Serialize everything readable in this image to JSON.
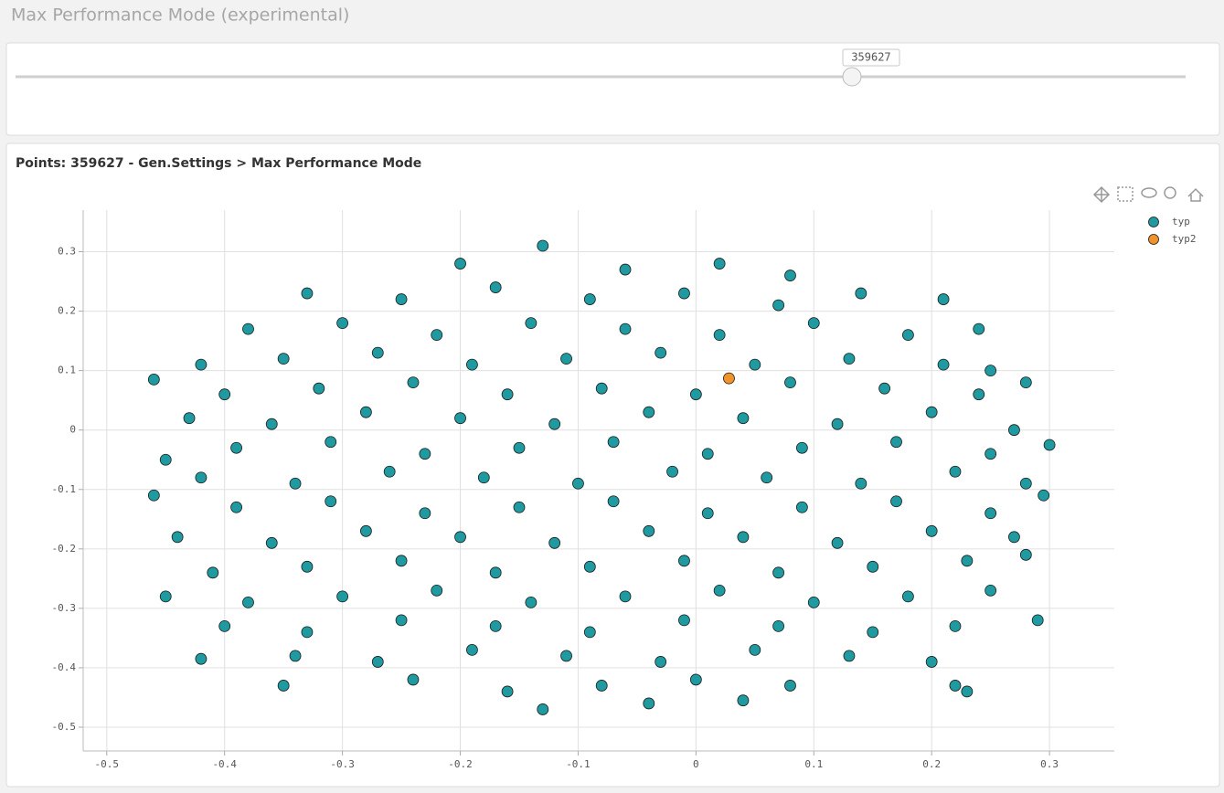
{
  "header": {
    "title": "Max Performance Mode (experimental)"
  },
  "slider": {
    "value": 359627
  },
  "chart_data": {
    "type": "scatter",
    "title": "Points: 359627 - Gen.Settings > Max Performance Mode",
    "xlim": [
      -0.52,
      0.355
    ],
    "ylim": [
      -0.54,
      0.37
    ],
    "xticks": [
      -0.5,
      -0.4,
      -0.3,
      -0.2,
      -0.1,
      0,
      0.1,
      0.2,
      0.3
    ],
    "yticks": [
      -0.5,
      -0.4,
      -0.3,
      -0.2,
      -0.1,
      0,
      0.1,
      0.2,
      0.3
    ],
    "grid": true,
    "legend": "right",
    "series": [
      {
        "name": "typ",
        "color": "#1f9aa0",
        "x": [
          -0.2,
          -0.13,
          -0.06,
          0.02,
          0.08,
          -0.33,
          -0.25,
          -0.17,
          -0.09,
          -0.01,
          0.07,
          0.14,
          0.21,
          -0.38,
          -0.3,
          -0.22,
          -0.14,
          -0.06,
          0.02,
          0.1,
          0.18,
          0.24,
          -0.42,
          -0.35,
          -0.27,
          -0.19,
          -0.11,
          -0.03,
          0.05,
          0.13,
          0.21,
          0.25,
          -0.46,
          -0.4,
          -0.32,
          -0.24,
          -0.16,
          -0.08,
          0,
          0.08,
          0.16,
          0.24,
          0.28,
          -0.43,
          -0.36,
          -0.28,
          -0.2,
          -0.12,
          -0.04,
          0.04,
          0.12,
          0.2,
          0.27,
          -0.45,
          -0.39,
          -0.31,
          -0.23,
          -0.15,
          -0.07,
          0.01,
          0.09,
          0.17,
          0.25,
          0.3,
          -0.42,
          -0.34,
          -0.26,
          -0.18,
          -0.1,
          -0.02,
          0.06,
          0.14,
          0.22,
          0.28,
          -0.46,
          -0.39,
          -0.31,
          -0.23,
          -0.15,
          -0.07,
          0.01,
          0.09,
          0.17,
          0.25,
          0.295,
          -0.44,
          -0.36,
          -0.28,
          -0.2,
          -0.12,
          -0.04,
          0.04,
          0.12,
          0.2,
          0.27,
          -0.41,
          -0.33,
          -0.25,
          -0.17,
          -0.09,
          -0.01,
          0.07,
          0.15,
          0.23,
          0.28,
          -0.45,
          -0.38,
          -0.3,
          -0.22,
          -0.14,
          -0.06,
          0.02,
          0.1,
          0.18,
          0.25,
          0.29,
          -0.4,
          -0.33,
          -0.25,
          -0.17,
          -0.09,
          -0.01,
          0.07,
          0.15,
          0.22,
          -0.42,
          -0.34,
          -0.27,
          -0.19,
          -0.11,
          -0.03,
          0.05,
          0.13,
          0.2,
          -0.35,
          -0.24,
          -0.16,
          -0.08,
          0,
          0.08,
          0.22,
          0.23,
          -0.13,
          -0.04,
          0.04
        ],
        "y": [
          0.28,
          0.31,
          0.27,
          0.28,
          0.26,
          0.23,
          0.22,
          0.24,
          0.22,
          0.23,
          0.21,
          0.23,
          0.22,
          0.17,
          0.18,
          0.16,
          0.18,
          0.17,
          0.16,
          0.18,
          0.16,
          0.17,
          0.11,
          0.12,
          0.13,
          0.11,
          0.12,
          0.13,
          0.11,
          0.12,
          0.11,
          0.1,
          0.085,
          0.06,
          0.07,
          0.08,
          0.06,
          0.07,
          0.06,
          0.08,
          0.07,
          0.06,
          0.08,
          0.02,
          0.01,
          0.03,
          0.02,
          0.01,
          0.03,
          0.02,
          0.01,
          0.03,
          0,
          -0.05,
          -0.03,
          -0.02,
          -0.04,
          -0.03,
          -0.02,
          -0.04,
          -0.03,
          -0.02,
          -0.04,
          -0.025,
          -0.08,
          -0.09,
          -0.07,
          -0.08,
          -0.09,
          -0.07,
          -0.08,
          -0.09,
          -0.07,
          -0.09,
          -0.11,
          -0.13,
          -0.12,
          -0.14,
          -0.13,
          -0.12,
          -0.14,
          -0.13,
          -0.12,
          -0.14,
          -0.11,
          -0.18,
          -0.19,
          -0.17,
          -0.18,
          -0.19,
          -0.17,
          -0.18,
          -0.19,
          -0.17,
          -0.18,
          -0.24,
          -0.23,
          -0.22,
          -0.24,
          -0.23,
          -0.22,
          -0.24,
          -0.23,
          -0.22,
          -0.21,
          -0.28,
          -0.29,
          -0.28,
          -0.27,
          -0.29,
          -0.28,
          -0.27,
          -0.29,
          -0.28,
          -0.27,
          -0.32,
          -0.33,
          -0.34,
          -0.32,
          -0.33,
          -0.34,
          -0.32,
          -0.33,
          -0.34,
          -0.33,
          -0.385,
          -0.38,
          -0.39,
          -0.37,
          -0.38,
          -0.39,
          -0.37,
          -0.38,
          -0.39,
          -0.43,
          -0.42,
          -0.44,
          -0.43,
          -0.42,
          -0.43,
          -0.43,
          -0.44,
          -0.47,
          -0.46,
          -0.455
        ]
      },
      {
        "name": "typ2",
        "color": "#f0932b",
        "x": [
          0.028
        ],
        "y": [
          0.087
        ]
      }
    ]
  }
}
